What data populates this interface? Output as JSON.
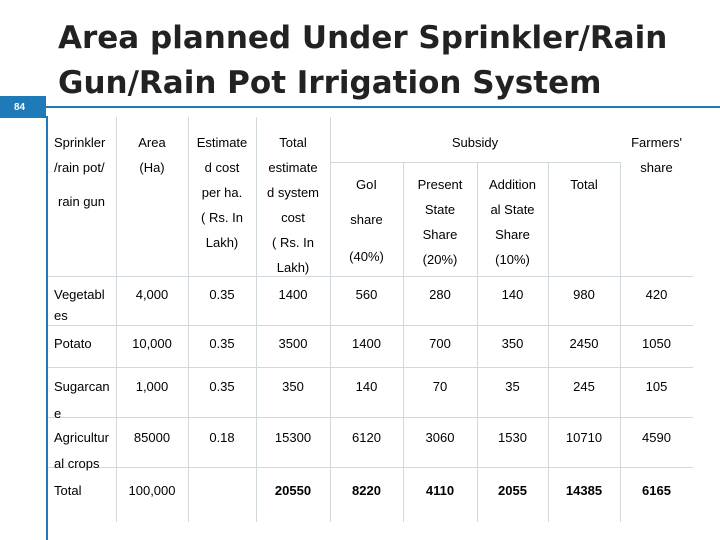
{
  "slide": {
    "number": "84",
    "title": "Area planned Under Sprinkler/Rain Gun/Rain Pot Irrigation System"
  },
  "table": {
    "headers": {
      "type": [
        "Sprinkler",
        "/rain pot/",
        "rain gun"
      ],
      "area": [
        "Area",
        "(Ha)"
      ],
      "estimate": [
        "Estimate",
        "d cost",
        "per ha.",
        "( Rs. In",
        "Lakh)"
      ],
      "total": [
        "Total",
        "estimate",
        "d system",
        "cost",
        "( Rs. In",
        "Lakh)"
      ],
      "subsidy": "Subsidy",
      "goi": [
        "GoI",
        "share",
        "(40%)"
      ],
      "state": [
        "Present",
        "State",
        "Share",
        "(20%)"
      ],
      "addition": [
        "Addition",
        "al State",
        "Share",
        "(10%)"
      ],
      "subsidy_total": "Total",
      "farmers": [
        "Farmers'",
        "share"
      ]
    },
    "rows": [
      {
        "crop": [
          "Vegetabl",
          "es"
        ],
        "area": "4,000",
        "estimate": "0.35",
        "total": "1400",
        "goi": "560",
        "state": "280",
        "addition": "140",
        "sub_total": "980",
        "farmers": "420"
      },
      {
        "crop": [
          "Potato"
        ],
        "area": "10,000",
        "estimate": "0.35",
        "total": "3500",
        "goi": "1400",
        "state": "700",
        "addition": "350",
        "sub_total": "2450",
        "farmers": "1050"
      },
      {
        "crop": [
          "Sugarcan",
          "e"
        ],
        "area": "1,000",
        "estimate": "0.35",
        "total": "350",
        "goi": "140",
        "state": "70",
        "addition": "35",
        "sub_total": "245",
        "farmers": "105"
      },
      {
        "crop": [
          "Agricultur",
          "al crops"
        ],
        "area": "85000",
        "estimate": "0.18",
        "total": "15300",
        "goi": "6120",
        "state": "3060",
        "addition": "1530",
        "sub_total": "10710",
        "farmers": "4590"
      },
      {
        "crop": [
          "Total"
        ],
        "area": "100,000",
        "estimate": "",
        "total": "20550",
        "goi": "8220",
        "state": "4110",
        "addition": "2055",
        "sub_total": "14385",
        "farmers": "6165"
      }
    ]
  },
  "colors": {
    "accent": "#1F7AB8"
  }
}
